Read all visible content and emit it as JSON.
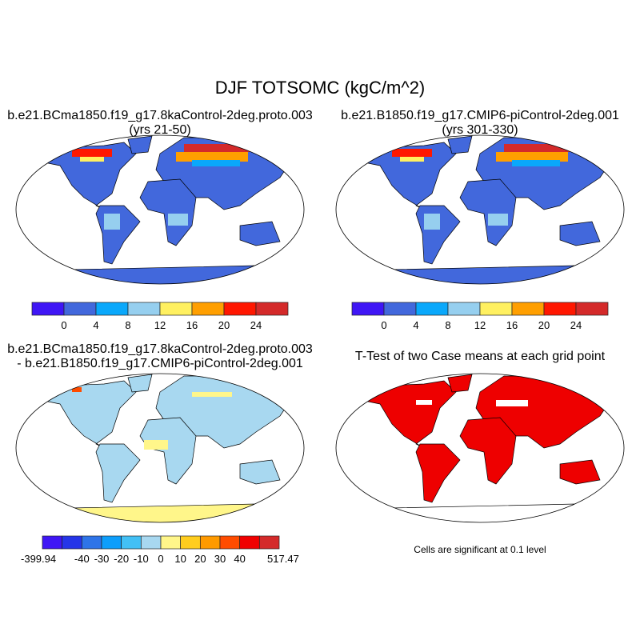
{
  "title": "DJF TOTSOMC (kgC/m^2)",
  "panels": [
    {
      "title_line1": "b.e21.BCma1850.f19_g17.8kaControl-2deg.proto.003",
      "title_line2": "(yrs 21-50)"
    },
    {
      "title_line1": "b.e21.B1850.f19_g17.CMIP6-piControl-2deg.001",
      "title_line2": "(yrs 301-330)"
    },
    {
      "title_line1": "b.e21.BCma1850.f19_g17.8kaControl-2deg.proto.003",
      "title_line2": "- b.e21.B1850.f19_g17.CMIP6-piControl-2deg.001"
    },
    {
      "title_line1": "T-Test of two Case means at each grid point",
      "footnote": "Cells are significant at 0.1 level"
    }
  ],
  "colorbar_abs": {
    "labels": [
      "0",
      "4",
      "8",
      "12",
      "16",
      "20",
      "24"
    ],
    "colors": [
      "#3f16f5",
      "#4268dc",
      "#0aa8fb",
      "#96cfef",
      "#fff060",
      "#ff9f00",
      "#ff1700",
      "#d42a2a"
    ]
  },
  "colorbar_diff": {
    "labels": [
      "-399.94",
      "-40",
      "-30",
      "-20",
      "-10",
      "0",
      "10",
      "20",
      "30",
      "40",
      "517.47"
    ],
    "colors": [
      "#3f16f5",
      "#2535e8",
      "#2e74e8",
      "#0d9efb",
      "#42c0f5",
      "#a8d8f0",
      "#fff68a",
      "#ffcd1e",
      "#ff9a00",
      "#ff4c00",
      "#f00000",
      "#d42a2a"
    ]
  },
  "map_colors": {
    "ocean": "#ffffff",
    "abs_land": "#4268dc",
    "diff_land": "#a8d8f0",
    "diff_antarctica": "#fff68a",
    "ttest_land": "#ee0000"
  }
}
